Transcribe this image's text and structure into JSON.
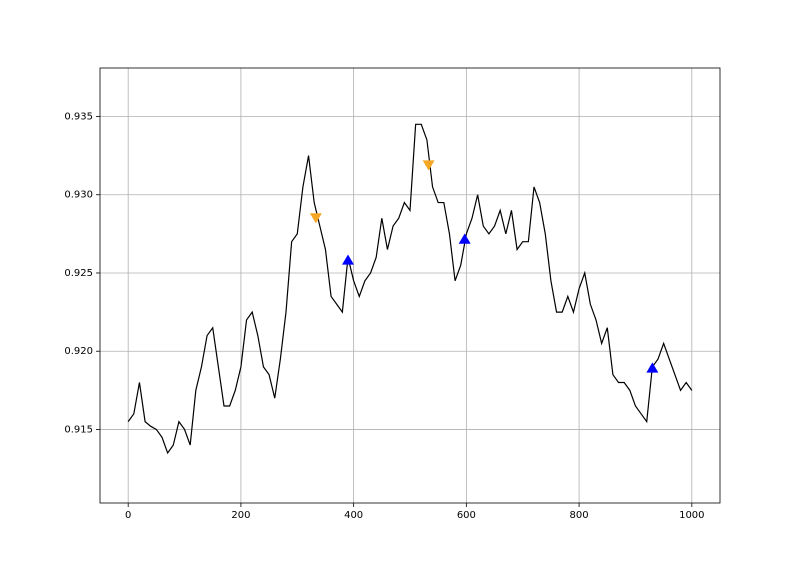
{
  "chart_data": {
    "type": "line",
    "xlim": [
      -50,
      1050
    ],
    "ylim": [
      0.9103,
      0.9381
    ],
    "xticks": [
      0,
      200,
      400,
      600,
      800,
      1000
    ],
    "yticks": [
      0.915,
      {
        "value": 0.92,
        "label": "0.920"
      },
      0.925,
      {
        "value": 0.93,
        "label": "0.930"
      },
      0.935
    ],
    "grid": true,
    "x": [
      0,
      10,
      20,
      30,
      40,
      50,
      60,
      70,
      80,
      90,
      100,
      110,
      120,
      130,
      140,
      150,
      160,
      170,
      180,
      190,
      200,
      210,
      220,
      230,
      240,
      250,
      260,
      270,
      280,
      290,
      300,
      310,
      320,
      330,
      340,
      350,
      360,
      370,
      380,
      390,
      400,
      410,
      420,
      430,
      440,
      450,
      460,
      470,
      480,
      490,
      500,
      510,
      520,
      530,
      540,
      550,
      560,
      570,
      580,
      590,
      600,
      610,
      620,
      630,
      640,
      650,
      660,
      670,
      680,
      690,
      700,
      710,
      720,
      730,
      740,
      750,
      760,
      770,
      780,
      790,
      800,
      810,
      820,
      830,
      840,
      850,
      860,
      870,
      880,
      890,
      900,
      910,
      920,
      930,
      940,
      950,
      960,
      970,
      980,
      990,
      1000
    ],
    "series": [
      {
        "marker": "line",
        "color": "#000000",
        "values": [
          0.9155,
          0.916,
          0.918,
          0.9155,
          0.9152,
          0.915,
          0.9145,
          0.9135,
          0.914,
          0.9155,
          0.915,
          0.914,
          0.9175,
          0.919,
          0.921,
          0.9215,
          0.919,
          0.9165,
          0.9165,
          0.9175,
          0.919,
          0.922,
          0.9225,
          0.921,
          0.919,
          0.9185,
          0.917,
          0.9195,
          0.9225,
          0.927,
          0.9275,
          0.9305,
          0.9325,
          0.9295,
          0.928,
          0.9265,
          0.9235,
          0.923,
          0.9225,
          0.926,
          0.9245,
          0.9235,
          0.9245,
          0.925,
          0.926,
          0.9285,
          0.9265,
          0.928,
          0.9285,
          0.9295,
          0.929,
          0.9345,
          0.9345,
          0.9335,
          0.9305,
          0.9295,
          0.9295,
          0.9275,
          0.9245,
          0.9255,
          0.9275,
          0.9285,
          0.93,
          0.928,
          0.9275,
          0.928,
          0.929,
          0.9275,
          0.929,
          0.9265,
          0.927,
          0.927,
          0.9305,
          0.9295,
          0.9275,
          0.9245,
          0.9225,
          0.9225,
          0.9235,
          0.9225,
          0.924,
          0.925,
          0.923,
          0.922,
          0.9205,
          0.9215,
          0.9185,
          0.918,
          0.918,
          0.9175,
          0.9165,
          0.916,
          0.9155,
          0.919,
          0.9195,
          0.9205,
          0.9195,
          0.9185,
          0.9175,
          0.918,
          0.9175
        ]
      },
      {
        "marker": "triangle-down",
        "color": "#f5a623",
        "x": [
          333,
          533
        ],
        "values": [
          0.92855,
          0.93193
        ]
      },
      {
        "marker": "triangle-up",
        "color": "#0000ff",
        "x": [
          390,
          597,
          930
        ],
        "values": [
          0.9258,
          0.92714,
          0.9189
        ]
      }
    ]
  }
}
